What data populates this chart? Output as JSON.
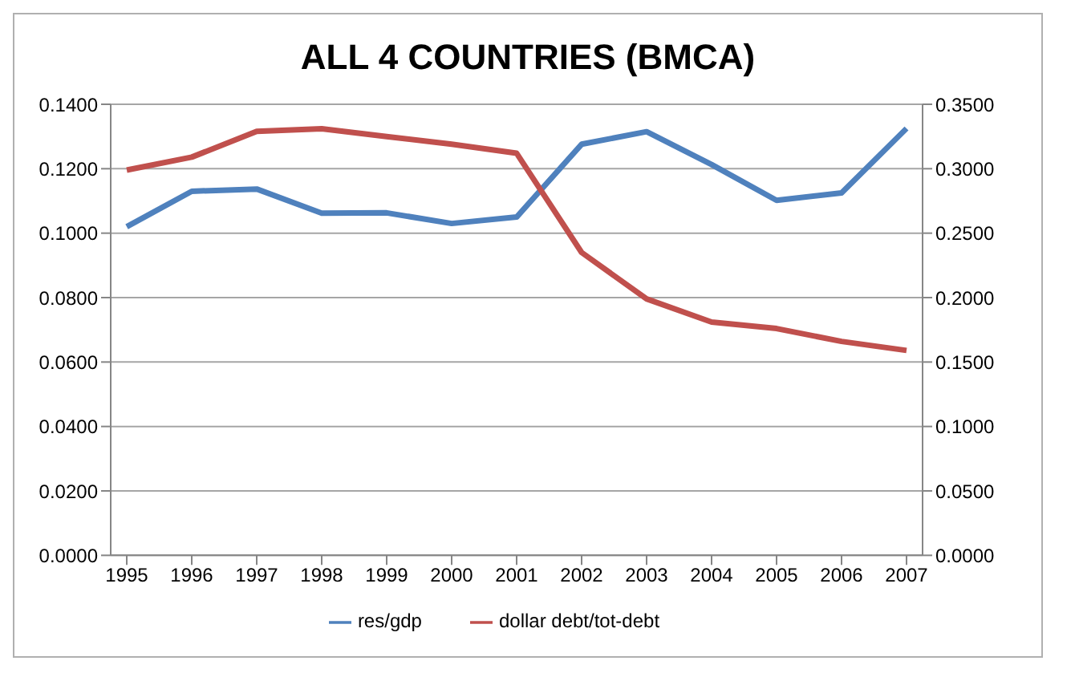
{
  "chart_data": {
    "type": "line",
    "title": "ALL 4 COUNTRIES (BMCA)",
    "categories": [
      "1995",
      "1996",
      "1997",
      "1998",
      "1999",
      "2000",
      "2001",
      "2002",
      "2003",
      "2004",
      "2005",
      "2006",
      "2007"
    ],
    "series": [
      {
        "name": "res/gdp",
        "color": "#4f81bd",
        "values": [
          0.102,
          0.113,
          0.1137,
          0.1062,
          0.1063,
          0.103,
          0.105,
          0.1276,
          0.1315,
          0.1213,
          0.1102,
          0.1125,
          0.1325
        ]
      },
      {
        "name": "dollar debt/tot-debt",
        "color": "#c0504d",
        "axis": "y2",
        "values": [
          0.299,
          0.309,
          0.329,
          0.331,
          0.325,
          0.319,
          0.312,
          0.235,
          0.199,
          0.181,
          0.176,
          0.166,
          0.159
        ]
      }
    ],
    "ylim": [
      0,
      0.14
    ],
    "yticks": [
      {
        "value": 0,
        "label": "0.0000"
      },
      {
        "value": 0.02,
        "label": "0.0200"
      },
      {
        "value": 0.04,
        "label": "0.0400"
      },
      {
        "value": 0.06,
        "label": "0.0600"
      },
      {
        "value": 0.08,
        "label": "0.0800"
      },
      {
        "value": 0.1,
        "label": "0.1000"
      },
      {
        "value": 0.12,
        "label": "0.1200"
      },
      {
        "value": 0.14,
        "label": "0.1400"
      }
    ],
    "y2lim": [
      0,
      0.35
    ],
    "y2ticks": [
      {
        "value": 0,
        "label": "0.0000"
      },
      {
        "value": 0.05,
        "label": "0.0500"
      },
      {
        "value": 0.1,
        "label": "0.1000"
      },
      {
        "value": 0.15,
        "label": "0.1500"
      },
      {
        "value": 0.2,
        "label": "0.2000"
      },
      {
        "value": 0.25,
        "label": "0.2500"
      },
      {
        "value": 0.3,
        "label": "0.3000"
      },
      {
        "value": 0.35,
        "label": "0.3500"
      }
    ],
    "grid": "y",
    "legend": "bottom",
    "marker": "none",
    "line_style": "solid"
  }
}
